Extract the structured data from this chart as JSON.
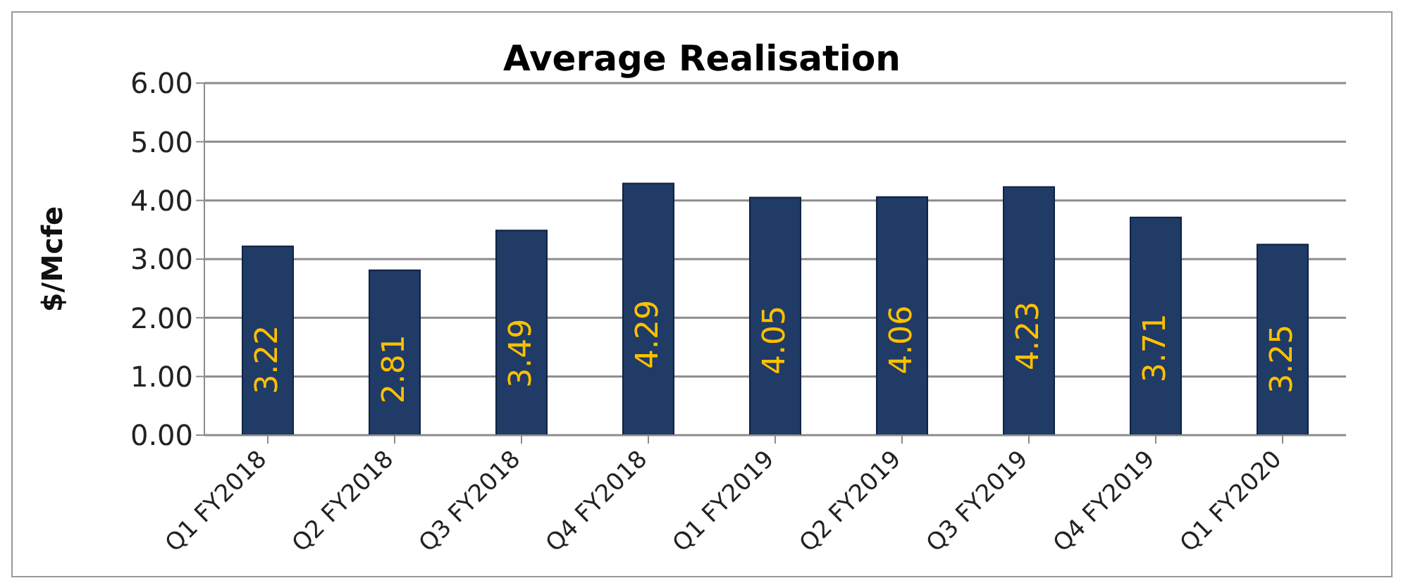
{
  "chart_data": {
    "type": "bar",
    "title": "Average Realisation",
    "ylabel": "$/Mcfe",
    "categories": [
      "Q1 FY2018",
      "Q2 FY2018",
      "Q3 FY2018",
      "Q4 FY2018",
      "Q1 FY2019",
      "Q2 FY2019",
      "Q3 FY2019",
      "Q4 FY2019",
      "Q1 FY2020"
    ],
    "values": [
      3.22,
      2.81,
      3.49,
      4.29,
      4.05,
      4.06,
      4.23,
      3.71,
      3.25
    ],
    "color": "#1f3b66",
    "ylim": [
      0,
      6
    ],
    "yticks": [
      {
        "value": 0,
        "label": "0.00"
      },
      {
        "value": 1,
        "label": "1.00"
      },
      {
        "value": 2,
        "label": "2.00"
      },
      {
        "value": 3,
        "label": "3.00"
      },
      {
        "value": 4,
        "label": "4.00"
      },
      {
        "value": 5,
        "label": "5.00"
      },
      {
        "value": 6,
        "label": "6.00"
      }
    ],
    "grid": "y",
    "data_labels": true,
    "legend": false
  }
}
